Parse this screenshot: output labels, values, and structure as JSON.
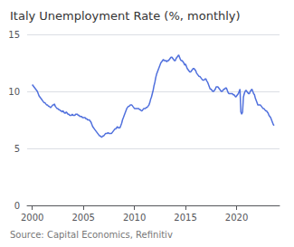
{
  "chart_data": {
    "type": "line",
    "title": "Italy Unemployment Rate (%, monthly)",
    "annotation": "Source: Capital Economics, Refinitiv",
    "x": [
      2000.0,
      2000.083,
      2000.167,
      2000.25,
      2000.333,
      2000.417,
      2000.5,
      2000.583,
      2000.667,
      2000.75,
      2000.833,
      2000.917,
      2001.0,
      2001.083,
      2001.167,
      2001.25,
      2001.333,
      2001.417,
      2001.5,
      2001.583,
      2001.667,
      2001.75,
      2001.833,
      2001.917,
      2002.0,
      2002.083,
      2002.167,
      2002.25,
      2002.333,
      2002.417,
      2002.5,
      2002.583,
      2002.667,
      2002.75,
      2002.833,
      2002.917,
      2003.0,
      2003.083,
      2003.167,
      2003.25,
      2003.333,
      2003.417,
      2003.5,
      2003.583,
      2003.667,
      2003.75,
      2003.833,
      2003.917,
      2004.0,
      2004.083,
      2004.167,
      2004.25,
      2004.333,
      2004.417,
      2004.5,
      2004.583,
      2004.667,
      2004.75,
      2004.833,
      2004.917,
      2005.0,
      2005.083,
      2005.167,
      2005.25,
      2005.333,
      2005.417,
      2005.5,
      2005.583,
      2005.667,
      2005.75,
      2005.833,
      2005.917,
      2006.0,
      2006.083,
      2006.167,
      2006.25,
      2006.333,
      2006.417,
      2006.5,
      2006.583,
      2006.667,
      2006.75,
      2006.833,
      2006.917,
      2007.0,
      2007.083,
      2007.167,
      2007.25,
      2007.333,
      2007.417,
      2007.5,
      2007.583,
      2007.667,
      2007.75,
      2007.833,
      2007.917,
      2008.0,
      2008.083,
      2008.167,
      2008.25,
      2008.333,
      2008.417,
      2008.5,
      2008.583,
      2008.667,
      2008.75,
      2008.833,
      2008.917,
      2009.0,
      2009.083,
      2009.167,
      2009.25,
      2009.333,
      2009.417,
      2009.5,
      2009.583,
      2009.667,
      2009.75,
      2009.833,
      2009.917,
      2010.0,
      2010.083,
      2010.167,
      2010.25,
      2010.333,
      2010.417,
      2010.5,
      2010.583,
      2010.667,
      2010.75,
      2010.833,
      2010.917,
      2011.0,
      2011.083,
      2011.167,
      2011.25,
      2011.333,
      2011.417,
      2011.5,
      2011.583,
      2011.667,
      2011.75,
      2011.833,
      2011.917,
      2012.0,
      2012.083,
      2012.167,
      2012.25,
      2012.333,
      2012.417,
      2012.5,
      2012.583,
      2012.667,
      2012.75,
      2012.833,
      2012.917,
      2013.0,
      2013.083,
      2013.167,
      2013.25,
      2013.333,
      2013.417,
      2013.5,
      2013.583,
      2013.667,
      2013.75,
      2013.833,
      2013.917,
      2014.0,
      2014.083,
      2014.167,
      2014.25,
      2014.333,
      2014.417,
      2014.5,
      2014.583,
      2014.667,
      2014.75,
      2014.833,
      2014.917,
      2015.0,
      2015.083,
      2015.167,
      2015.25,
      2015.333,
      2015.417,
      2015.5,
      2015.583,
      2015.667,
      2015.75,
      2015.833,
      2015.917,
      2016.0,
      2016.083,
      2016.167,
      2016.25,
      2016.333,
      2016.417,
      2016.5,
      2016.583,
      2016.667,
      2016.75,
      2016.833,
      2016.917,
      2017.0,
      2017.083,
      2017.167,
      2017.25,
      2017.333,
      2017.417,
      2017.5,
      2017.583,
      2017.667,
      2017.75,
      2017.833,
      2017.917,
      2018.0,
      2018.083,
      2018.167,
      2018.25,
      2018.333,
      2018.417,
      2018.5,
      2018.583,
      2018.667,
      2018.75,
      2018.833,
      2018.917,
      2019.0,
      2019.083,
      2019.167,
      2019.25,
      2019.333,
      2019.417,
      2019.5,
      2019.583,
      2019.667,
      2019.75,
      2019.833,
      2019.917,
      2020.0,
      2020.083,
      2020.167,
      2020.25,
      2020.333,
      2020.417,
      2020.5,
      2020.583,
      2020.667,
      2020.75,
      2020.833,
      2020.917,
      2021.0,
      2021.083,
      2021.167,
      2021.25,
      2021.333,
      2021.417,
      2021.5,
      2021.583,
      2021.667,
      2021.75,
      2021.833,
      2021.917,
      2022.0,
      2022.083,
      2022.167,
      2022.25,
      2022.333,
      2022.417,
      2022.5,
      2022.583,
      2022.667,
      2022.75,
      2022.833,
      2022.917,
      2023.0,
      2023.083,
      2023.167,
      2023.25,
      2023.333,
      2023.417,
      2023.5,
      2023.583,
      2023.667
    ],
    "values": [
      10.6,
      10.5,
      10.4,
      10.3,
      10.2,
      10.1,
      10.0,
      9.8,
      9.6,
      9.5,
      9.4,
      9.3,
      9.2,
      9.1,
      9.0,
      9.0,
      8.9,
      8.8,
      8.8,
      8.7,
      8.7,
      8.6,
      8.6,
      8.7,
      8.8,
      8.8,
      8.9,
      8.7,
      8.6,
      8.5,
      8.5,
      8.4,
      8.4,
      8.3,
      8.3,
      8.2,
      8.3,
      8.2,
      8.1,
      8.1,
      8.2,
      8.1,
      8.0,
      8.0,
      7.9,
      7.9,
      7.9,
      8.0,
      7.9,
      7.9,
      7.9,
      8.0,
      8.0,
      8.0,
      7.9,
      7.9,
      7.8,
      7.8,
      7.8,
      7.7,
      7.7,
      7.7,
      7.7,
      7.6,
      7.6,
      7.5,
      7.5,
      7.5,
      7.4,
      7.3,
      7.1,
      6.9,
      6.8,
      6.7,
      6.6,
      6.5,
      6.4,
      6.3,
      6.2,
      6.1,
      6.1,
      6.0,
      6.0,
      6.1,
      6.1,
      6.2,
      6.3,
      6.3,
      6.3,
      6.4,
      6.3,
      6.3,
      6.3,
      6.3,
      6.4,
      6.5,
      6.6,
      6.7,
      6.7,
      6.8,
      6.9,
      6.8,
      6.8,
      6.8,
      7.0,
      7.2,
      7.5,
      7.7,
      7.9,
      8.1,
      8.3,
      8.5,
      8.6,
      8.7,
      8.7,
      8.8,
      8.8,
      8.8,
      8.7,
      8.6,
      8.5,
      8.5,
      8.5,
      8.5,
      8.5,
      8.5,
      8.4,
      8.4,
      8.3,
      8.3,
      8.4,
      8.5,
      8.5,
      8.5,
      8.6,
      8.6,
      8.7,
      8.8,
      9.0,
      9.3,
      9.5,
      9.8,
      10.1,
      10.5,
      10.8,
      11.2,
      11.5,
      11.7,
      11.9,
      12.1,
      12.3,
      12.5,
      12.6,
      12.7,
      12.8,
      12.7,
      12.7,
      12.7,
      12.6,
      12.7,
      12.7,
      12.8,
      12.9,
      13.0,
      13.0,
      12.9,
      12.8,
      12.7,
      12.7,
      12.9,
      13.0,
      13.1,
      13.2,
      13.0,
      12.8,
      12.7,
      12.7,
      12.6,
      12.5,
      12.3,
      12.4,
      12.2,
      12.0,
      11.9,
      11.8,
      11.7,
      11.7,
      11.8,
      11.9,
      12.0,
      12.0,
      11.9,
      11.8,
      11.6,
      11.5,
      11.4,
      11.3,
      11.3,
      11.2,
      11.1,
      11.0,
      11.0,
      11.0,
      11.1,
      11.1,
      10.9,
      10.8,
      10.6,
      10.4,
      10.2,
      10.2,
      10.1,
      10.0,
      10.0,
      10.1,
      10.2,
      10.4,
      10.4,
      10.4,
      10.3,
      10.2,
      10.1,
      10.0,
      10.0,
      10.1,
      10.2,
      10.2,
      10.3,
      10.3,
      10.1,
      9.9,
      9.8,
      9.8,
      9.8,
      9.8,
      9.8,
      9.7,
      9.7,
      9.6,
      9.5,
      9.6,
      9.7,
      9.8,
      10.0,
      10.2,
      8.2,
      8.0,
      8.2,
      9.5,
      9.8,
      10.0,
      10.1,
      10.0,
      9.9,
      9.8,
      9.8,
      10.0,
      10.1,
      10.2,
      10.0,
      9.8,
      9.7,
      9.4,
      9.2,
      9.0,
      8.8,
      8.8,
      8.8,
      8.8,
      8.7,
      8.6,
      8.5,
      8.5,
      8.4,
      8.3,
      8.3,
      8.2,
      8.1,
      7.9,
      7.8,
      7.7,
      7.5,
      7.3,
      7.1,
      7.0
    ],
    "xlim": [
      1999.5,
      2024.2
    ],
    "xticks": [
      2000,
      2005,
      2010,
      2015,
      2020
    ],
    "ylim": [
      0,
      15
    ],
    "yticks": [
      0,
      5,
      10,
      15
    ],
    "grid": "y"
  }
}
